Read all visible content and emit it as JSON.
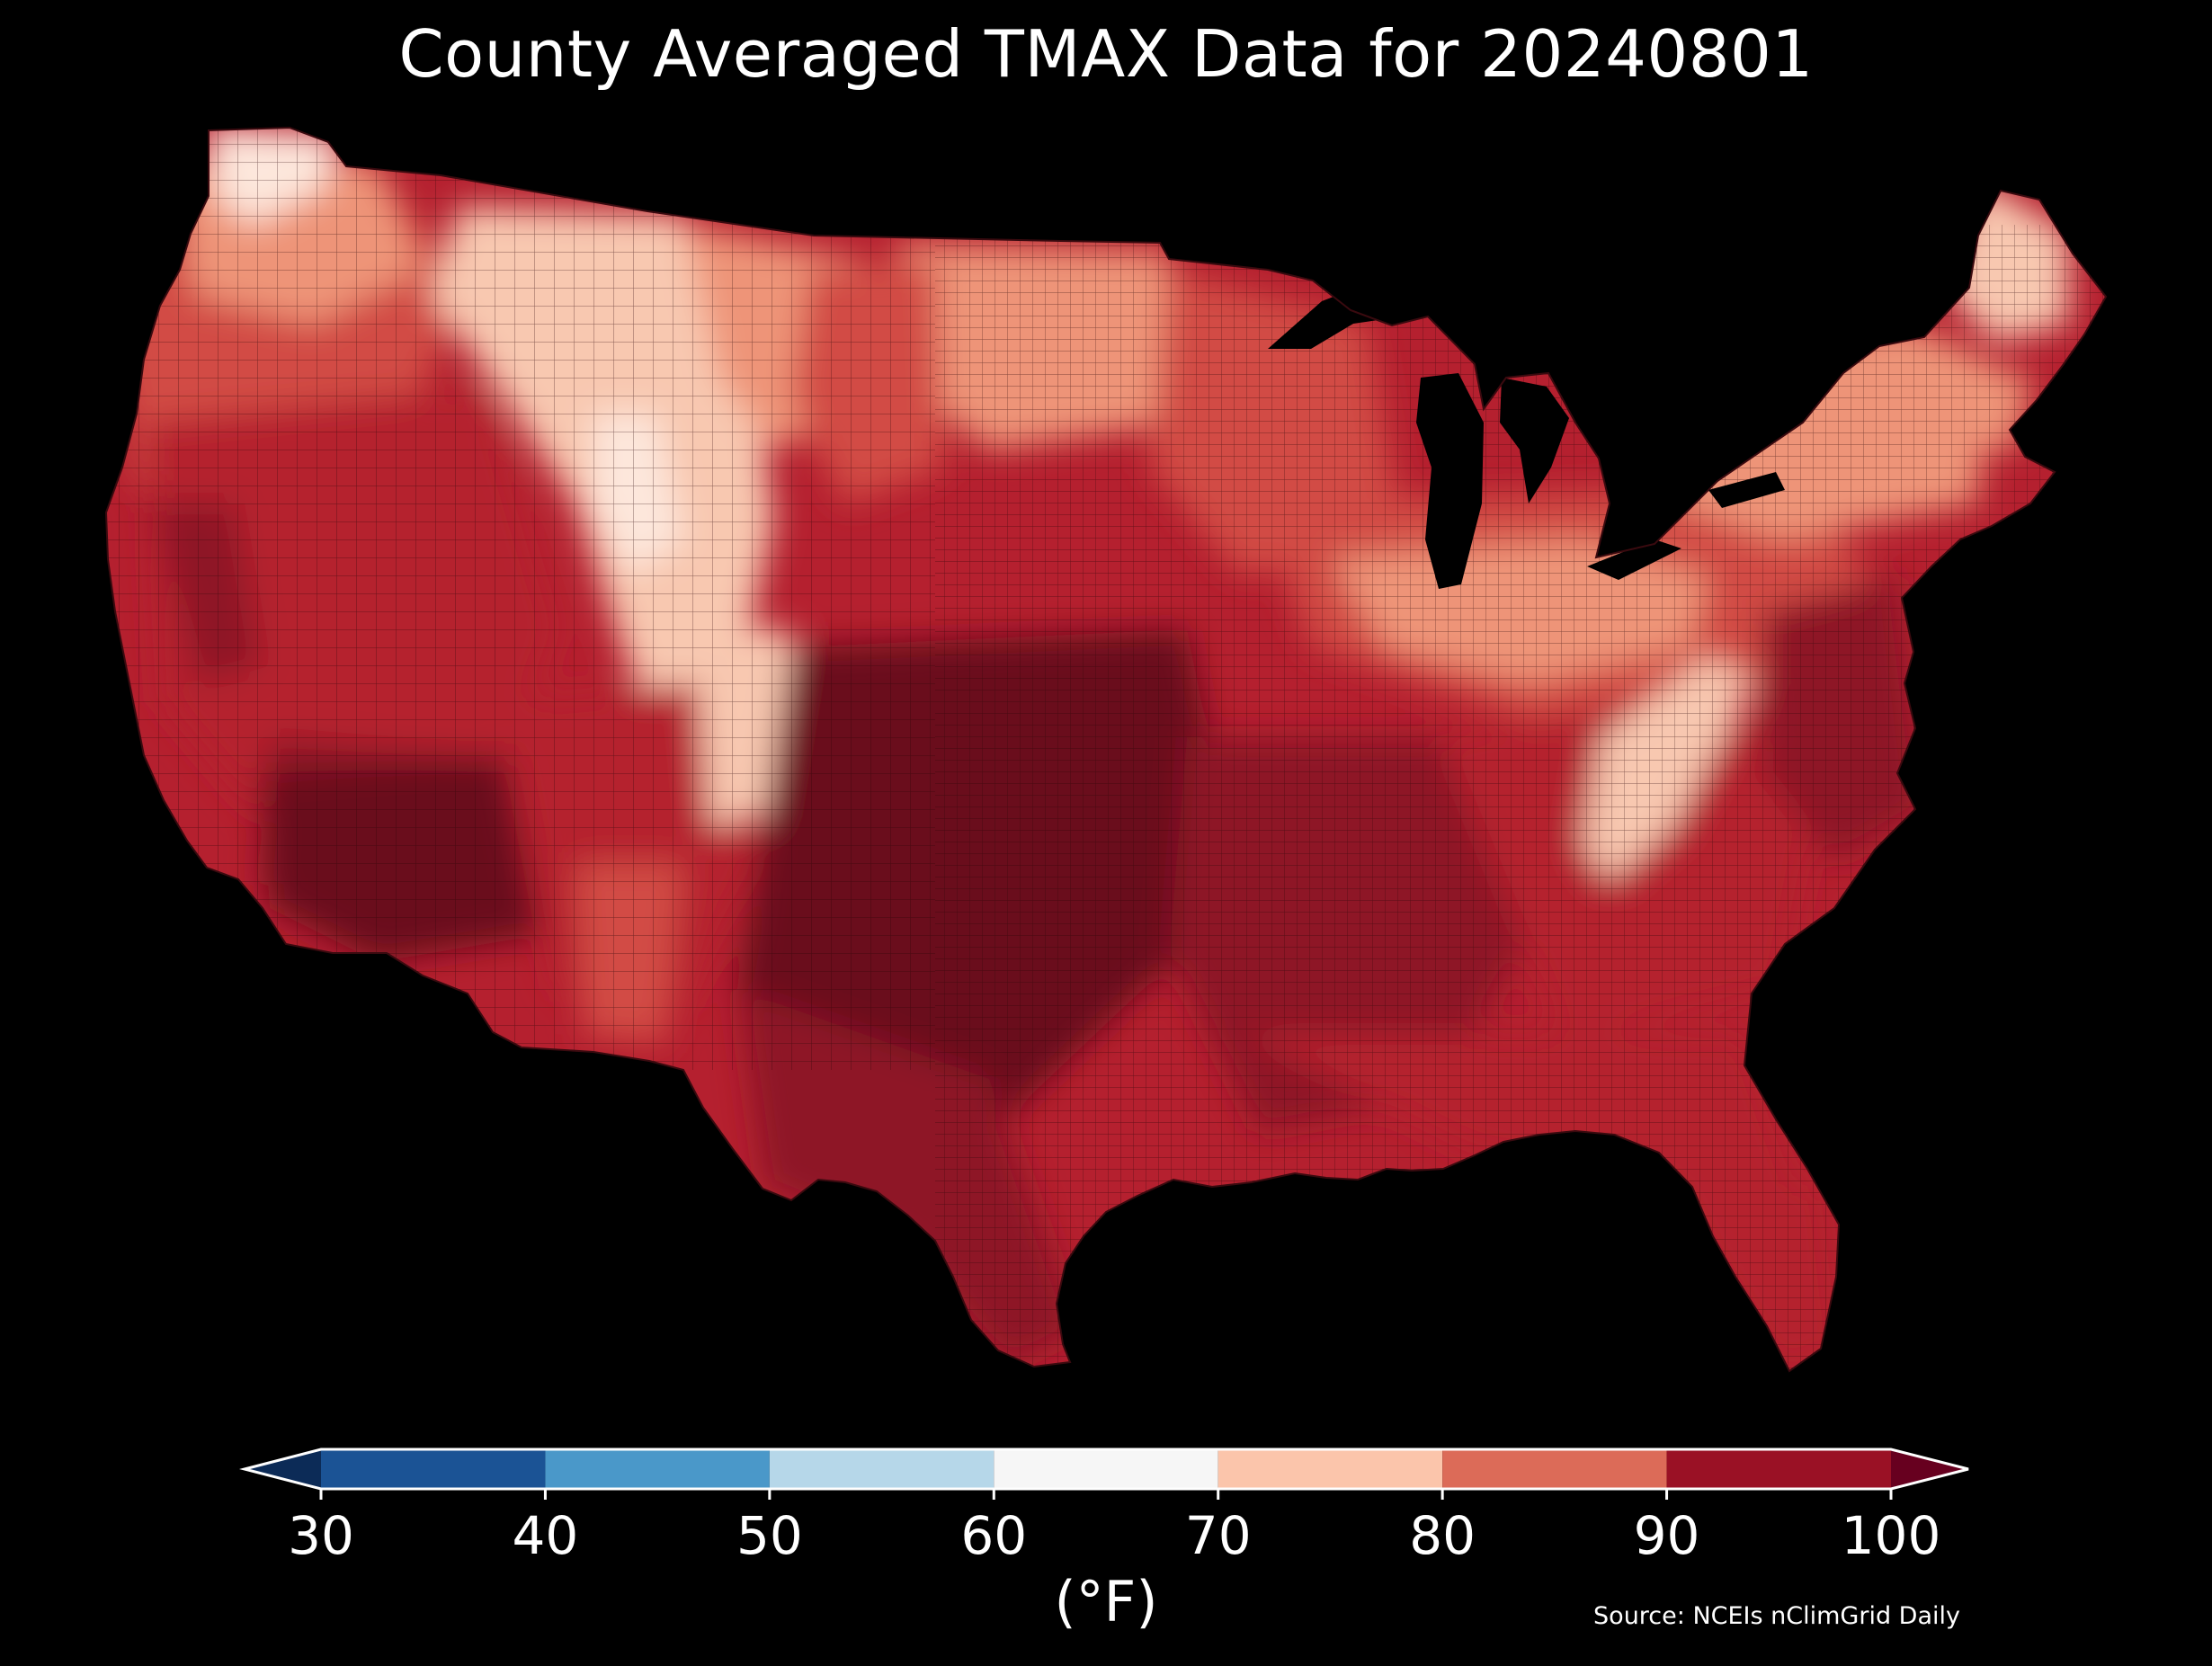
{
  "title": "County Averaged TMAX Data for 20240801",
  "colorbar": {
    "unit_label": "(°F)",
    "ticks": [
      "30",
      "40",
      "50",
      "60",
      "70",
      "80",
      "90",
      "100"
    ],
    "bins": [
      {
        "from": 30,
        "to": 40,
        "color": "#1b5395"
      },
      {
        "from": 40,
        "to": 50,
        "color": "#4a98c9"
      },
      {
        "from": 50,
        "to": 60,
        "color": "#b6d7e9"
      },
      {
        "from": 60,
        "to": 70,
        "color": "#f6f6f6"
      },
      {
        "from": 70,
        "to": 80,
        "color": "#fbc5ab"
      },
      {
        "from": 80,
        "to": 90,
        "color": "#dc6b58"
      },
      {
        "from": 90,
        "to": 100,
        "color": "#9a1125"
      }
    ],
    "under_color": "#0c2b57",
    "over_color": "#67001f"
  },
  "source": "Source: NCEIs nClimGrid Daily",
  "map": {
    "region": "contiguous-united-states",
    "value_range_shown": [
      70,
      100
    ],
    "palette": {
      "extreme": "#6b0a1e",
      "very_hot": "#8e1428",
      "hot": "#b5202f",
      "warm": "#d24b44",
      "mild": "#ee9478",
      "cool": "#f8c8b0",
      "coolest": "#fde7dc"
    }
  }
}
